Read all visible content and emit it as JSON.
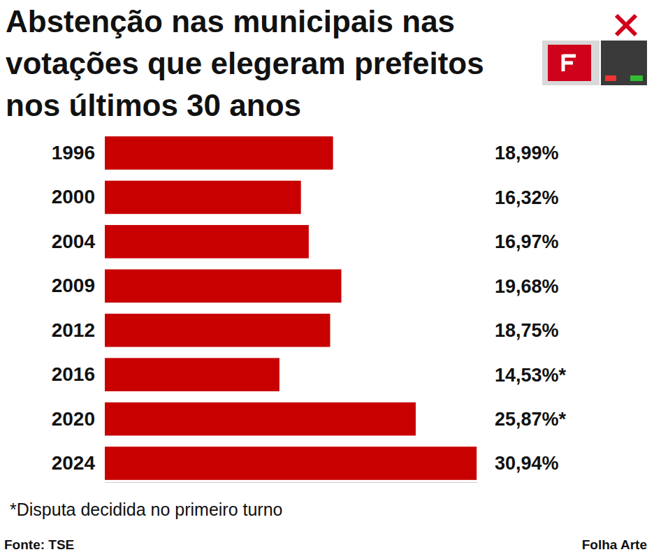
{
  "chart_data": {
    "type": "bar",
    "title": "Abstenção nas municipais nas votações que elegeram prefeitos nos últimos 30 anos",
    "categories": [
      "1996",
      "2000",
      "2004",
      "2009",
      "2012",
      "2016",
      "2020",
      "2024"
    ],
    "values": [
      18.99,
      16.32,
      16.97,
      19.68,
      18.75,
      14.53,
      25.87,
      30.94
    ],
    "value_labels": [
      "18,99%",
      "16,32%",
      "16,97%",
      "19,68%",
      "18,75%",
      "14,53%*",
      "25,87%*",
      "30,94%"
    ],
    "color": "#c80000",
    "orientation": "horizontal",
    "data_labels": true,
    "tick_labels": "y",
    "xlim": [
      0,
      31
    ],
    "xticks": [],
    "annotations": [
      "*Disputa decidida no primeiro turno",
      "Fonte: TSE",
      "Folha Arte"
    ]
  }
}
